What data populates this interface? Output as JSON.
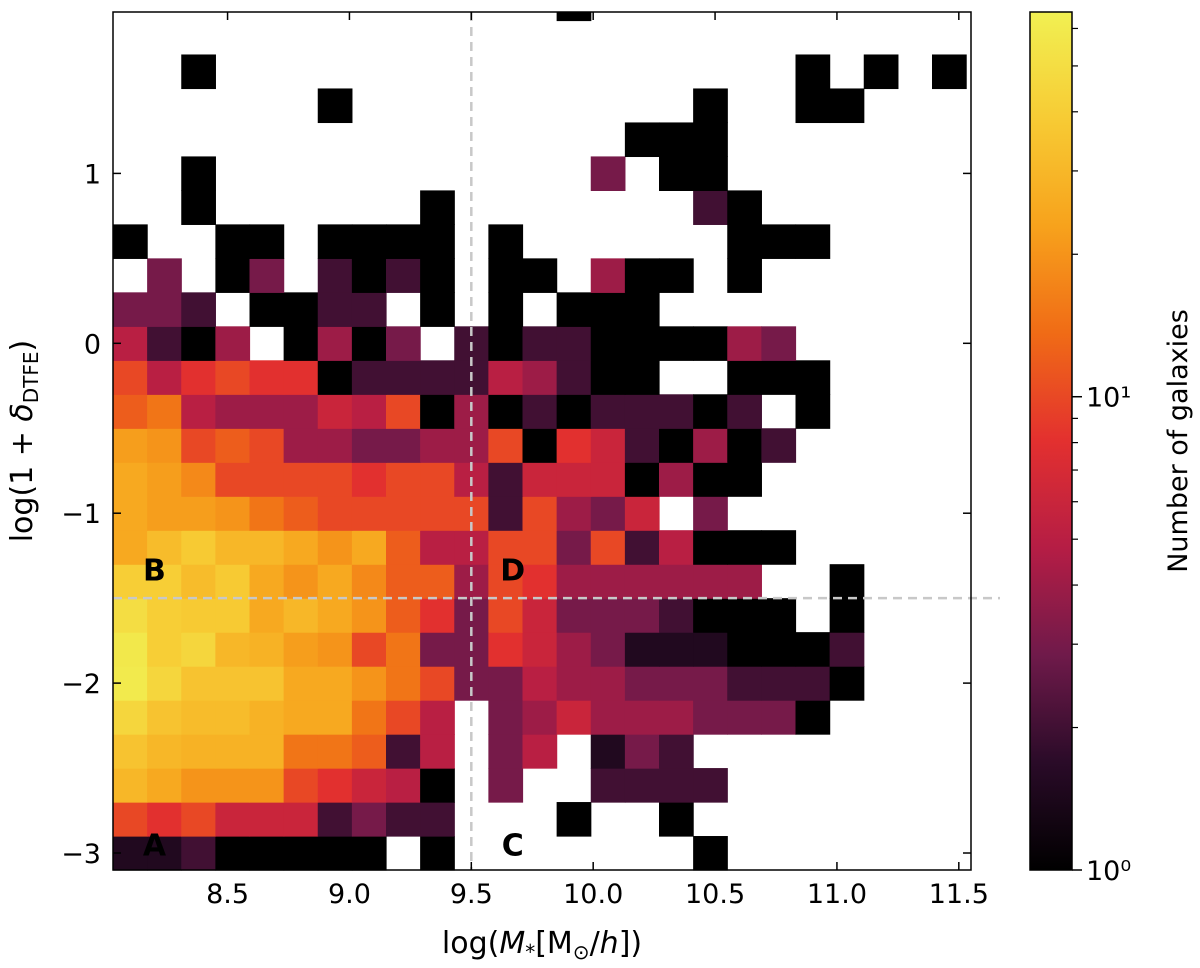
{
  "chart_data": {
    "type": "heatmap",
    "title": "",
    "xlabel": "log(M_*[M_⊙/h])",
    "ylabel": "log(1 + δ_DTFE)",
    "xlim": [
      8.03,
      11.55
    ],
    "ylim": [
      -3.1,
      1.95
    ],
    "xticks": [
      {
        "value": 8.5,
        "label": "8.5"
      },
      {
        "value": 9.0,
        "label": "9.0"
      },
      {
        "value": 9.5,
        "label": "9.5"
      },
      {
        "value": 10.0,
        "label": "10.0"
      },
      {
        "value": 10.5,
        "label": "10.5"
      },
      {
        "value": 11.0,
        "label": "11.0"
      },
      {
        "value": 11.5,
        "label": "11.5"
      }
    ],
    "yticks": [
      {
        "value": 1,
        "label": "1"
      },
      {
        "value": 0,
        "label": "0"
      },
      {
        "value": -1,
        "label": "−1"
      },
      {
        "value": -2,
        "label": "−2"
      },
      {
        "value": -3,
        "label": "−3"
      }
    ],
    "bin": {
      "x0": 8.03,
      "dx": 0.14,
      "y0": -3.1,
      "dy": 0.2
    },
    "cells": [
      [
        0,
        0,
        1.5
      ],
      [
        1,
        0,
        1.5
      ],
      [
        2,
        0,
        2
      ],
      [
        3,
        0,
        1
      ],
      [
        4,
        0,
        1
      ],
      [
        5,
        0,
        1
      ],
      [
        6,
        0,
        1
      ],
      [
        7,
        0,
        1
      ],
      [
        9,
        0,
        1
      ],
      [
        17,
        0,
        1
      ],
      [
        0,
        1,
        10
      ],
      [
        1,
        1,
        8
      ],
      [
        2,
        1,
        10
      ],
      [
        3,
        1,
        6
      ],
      [
        4,
        1,
        6
      ],
      [
        5,
        1,
        6
      ],
      [
        6,
        1,
        2
      ],
      [
        7,
        1,
        3
      ],
      [
        8,
        1,
        2
      ],
      [
        9,
        1,
        2
      ],
      [
        13,
        1,
        1
      ],
      [
        16,
        1,
        1
      ],
      [
        0,
        2,
        30
      ],
      [
        1,
        2,
        25
      ],
      [
        2,
        2,
        20
      ],
      [
        3,
        2,
        20
      ],
      [
        4,
        2,
        20
      ],
      [
        5,
        2,
        10
      ],
      [
        6,
        2,
        8
      ],
      [
        7,
        2,
        6
      ],
      [
        8,
        2,
        5
      ],
      [
        9,
        2,
        1
      ],
      [
        11,
        2,
        3
      ],
      [
        14,
        2,
        2
      ],
      [
        15,
        2,
        2
      ],
      [
        16,
        2,
        2
      ],
      [
        17,
        2,
        2
      ],
      [
        0,
        3,
        35
      ],
      [
        1,
        3,
        30
      ],
      [
        2,
        3,
        28
      ],
      [
        3,
        3,
        28
      ],
      [
        4,
        3,
        28
      ],
      [
        5,
        3,
        15
      ],
      [
        6,
        3,
        15
      ],
      [
        7,
        3,
        12
      ],
      [
        8,
        3,
        2
      ],
      [
        9,
        3,
        5
      ],
      [
        11,
        3,
        3
      ],
      [
        12,
        3,
        5
      ],
      [
        14,
        3,
        1.5
      ],
      [
        15,
        3,
        3
      ],
      [
        16,
        3,
        2
      ],
      [
        0,
        4,
        45
      ],
      [
        1,
        4,
        35
      ],
      [
        2,
        4,
        32
      ],
      [
        3,
        4,
        32
      ],
      [
        4,
        4,
        28
      ],
      [
        5,
        4,
        25
      ],
      [
        6,
        4,
        25
      ],
      [
        7,
        4,
        15
      ],
      [
        8,
        4,
        10
      ],
      [
        9,
        4,
        5
      ],
      [
        11,
        4,
        3
      ],
      [
        12,
        4,
        4
      ],
      [
        13,
        4,
        6
      ],
      [
        14,
        4,
        4
      ],
      [
        15,
        4,
        4
      ],
      [
        16,
        4,
        4
      ],
      [
        17,
        4,
        3
      ],
      [
        18,
        4,
        3
      ],
      [
        19,
        4,
        3
      ],
      [
        20,
        4,
        1
      ],
      [
        0,
        5,
        60
      ],
      [
        1,
        5,
        45
      ],
      [
        2,
        5,
        35
      ],
      [
        3,
        5,
        35
      ],
      [
        4,
        5,
        35
      ],
      [
        5,
        5,
        25
      ],
      [
        6,
        5,
        25
      ],
      [
        7,
        5,
        20
      ],
      [
        8,
        5,
        15
      ],
      [
        9,
        5,
        10
      ],
      [
        10,
        5,
        3
      ],
      [
        11,
        5,
        3
      ],
      [
        12,
        5,
        5
      ],
      [
        13,
        5,
        4
      ],
      [
        14,
        5,
        4
      ],
      [
        15,
        5,
        3
      ],
      [
        16,
        5,
        3
      ],
      [
        17,
        5,
        3
      ],
      [
        18,
        5,
        2
      ],
      [
        19,
        5,
        2
      ],
      [
        20,
        5,
        2
      ],
      [
        21,
        5,
        1
      ],
      [
        0,
        6,
        58
      ],
      [
        1,
        6,
        40
      ],
      [
        2,
        6,
        45
      ],
      [
        3,
        6,
        30
      ],
      [
        4,
        6,
        28
      ],
      [
        5,
        6,
        22
      ],
      [
        6,
        6,
        20
      ],
      [
        7,
        6,
        10
      ],
      [
        8,
        6,
        15
      ],
      [
        9,
        6,
        3
      ],
      [
        10,
        6,
        3
      ],
      [
        11,
        6,
        8
      ],
      [
        12,
        6,
        6
      ],
      [
        13,
        6,
        4
      ],
      [
        14,
        6,
        3
      ],
      [
        15,
        6,
        1.5
      ],
      [
        16,
        6,
        1.5
      ],
      [
        17,
        6,
        1.5
      ],
      [
        18,
        6,
        1
      ],
      [
        19,
        6,
        1
      ],
      [
        20,
        6,
        1
      ],
      [
        21,
        6,
        2
      ],
      [
        0,
        7,
        50
      ],
      [
        1,
        7,
        40
      ],
      [
        2,
        7,
        38
      ],
      [
        3,
        7,
        38
      ],
      [
        4,
        7,
        25
      ],
      [
        5,
        7,
        30
      ],
      [
        6,
        7,
        25
      ],
      [
        7,
        7,
        20
      ],
      [
        8,
        7,
        12
      ],
      [
        9,
        7,
        8
      ],
      [
        10,
        7,
        3
      ],
      [
        11,
        7,
        10
      ],
      [
        12,
        7,
        6
      ],
      [
        13,
        7,
        3
      ],
      [
        14,
        7,
        3
      ],
      [
        15,
        7,
        3
      ],
      [
        16,
        7,
        2
      ],
      [
        17,
        7,
        1
      ],
      [
        18,
        7,
        1
      ],
      [
        19,
        7,
        1
      ],
      [
        21,
        7,
        1
      ],
      [
        0,
        8,
        40
      ],
      [
        1,
        8,
        40
      ],
      [
        2,
        8,
        32
      ],
      [
        3,
        8,
        38
      ],
      [
        4,
        8,
        25
      ],
      [
        5,
        8,
        20
      ],
      [
        6,
        8,
        25
      ],
      [
        7,
        8,
        18
      ],
      [
        8,
        8,
        12
      ],
      [
        9,
        8,
        12
      ],
      [
        10,
        8,
        4
      ],
      [
        11,
        8,
        10
      ],
      [
        12,
        8,
        8
      ],
      [
        13,
        8,
        4
      ],
      [
        14,
        8,
        4
      ],
      [
        15,
        8,
        4
      ],
      [
        16,
        8,
        4
      ],
      [
        17,
        8,
        4
      ],
      [
        18,
        8,
        4
      ],
      [
        21,
        8,
        1
      ],
      [
        0,
        9,
        25
      ],
      [
        1,
        9,
        32
      ],
      [
        2,
        9,
        38
      ],
      [
        3,
        9,
        30
      ],
      [
        4,
        9,
        30
      ],
      [
        5,
        9,
        25
      ],
      [
        6,
        9,
        20
      ],
      [
        7,
        9,
        25
      ],
      [
        8,
        9,
        12
      ],
      [
        9,
        9,
        5
      ],
      [
        10,
        9,
        5
      ],
      [
        11,
        9,
        10
      ],
      [
        12,
        9,
        10
      ],
      [
        13,
        9,
        3
      ],
      [
        14,
        9,
        10
      ],
      [
        15,
        9,
        2
      ],
      [
        16,
        9,
        5
      ],
      [
        17,
        9,
        1
      ],
      [
        18,
        9,
        1
      ],
      [
        19,
        9,
        1
      ],
      [
        0,
        10,
        25
      ],
      [
        1,
        10,
        22
      ],
      [
        2,
        10,
        22
      ],
      [
        3,
        10,
        20
      ],
      [
        4,
        10,
        15
      ],
      [
        5,
        10,
        12
      ],
      [
        6,
        10,
        10
      ],
      [
        7,
        10,
        10
      ],
      [
        8,
        10,
        10
      ],
      [
        9,
        10,
        10
      ],
      [
        10,
        10,
        10
      ],
      [
        11,
        10,
        2
      ],
      [
        12,
        10,
        10
      ],
      [
        13,
        10,
        4
      ],
      [
        14,
        10,
        3
      ],
      [
        15,
        10,
        6
      ],
      [
        17,
        10,
        3
      ],
      [
        0,
        11,
        25
      ],
      [
        1,
        11,
        22
      ],
      [
        2,
        11,
        18
      ],
      [
        3,
        11,
        10
      ],
      [
        4,
        11,
        10
      ],
      [
        5,
        11,
        10
      ],
      [
        6,
        11,
        10
      ],
      [
        7,
        11,
        8
      ],
      [
        8,
        11,
        10
      ],
      [
        9,
        11,
        10
      ],
      [
        10,
        11,
        5
      ],
      [
        11,
        11,
        2
      ],
      [
        12,
        11,
        6
      ],
      [
        13,
        11,
        6
      ],
      [
        14,
        11,
        6
      ],
      [
        15,
        11,
        1
      ],
      [
        16,
        11,
        4
      ],
      [
        17,
        11,
        1
      ],
      [
        18,
        11,
        1
      ],
      [
        0,
        12,
        22
      ],
      [
        1,
        12,
        20
      ],
      [
        2,
        12,
        10
      ],
      [
        3,
        12,
        12
      ],
      [
        4,
        12,
        10
      ],
      [
        5,
        12,
        4
      ],
      [
        6,
        12,
        4
      ],
      [
        7,
        12,
        3
      ],
      [
        8,
        12,
        3
      ],
      [
        9,
        12,
        4
      ],
      [
        10,
        12,
        4
      ],
      [
        11,
        12,
        10
      ],
      [
        12,
        12,
        1
      ],
      [
        13,
        12,
        8
      ],
      [
        14,
        12,
        6
      ],
      [
        15,
        12,
        2
      ],
      [
        16,
        12,
        1
      ],
      [
        17,
        12,
        4
      ],
      [
        18,
        12,
        1
      ],
      [
        19,
        12,
        2
      ],
      [
        0,
        13,
        12
      ],
      [
        1,
        13,
        15
      ],
      [
        2,
        13,
        5
      ],
      [
        3,
        13,
        4
      ],
      [
        4,
        13,
        4
      ],
      [
        5,
        13,
        4
      ],
      [
        6,
        13,
        6
      ],
      [
        7,
        13,
        5
      ],
      [
        8,
        13,
        10
      ],
      [
        9,
        13,
        1
      ],
      [
        10,
        13,
        4
      ],
      [
        11,
        13,
        1
      ],
      [
        12,
        13,
        2
      ],
      [
        13,
        13,
        1
      ],
      [
        14,
        13,
        2
      ],
      [
        15,
        13,
        2
      ],
      [
        16,
        13,
        2
      ],
      [
        17,
        13,
        1
      ],
      [
        18,
        13,
        2
      ],
      [
        20,
        13,
        1
      ],
      [
        0,
        14,
        10
      ],
      [
        1,
        14,
        5
      ],
      [
        2,
        14,
        8
      ],
      [
        3,
        14,
        10
      ],
      [
        4,
        14,
        8
      ],
      [
        5,
        14,
        8
      ],
      [
        6,
        14,
        1
      ],
      [
        7,
        14,
        2
      ],
      [
        8,
        14,
        2
      ],
      [
        9,
        14,
        2
      ],
      [
        10,
        14,
        2
      ],
      [
        11,
        14,
        5
      ],
      [
        12,
        14,
        4
      ],
      [
        13,
        14,
        2
      ],
      [
        14,
        14,
        1
      ],
      [
        15,
        14,
        1
      ],
      [
        18,
        14,
        1
      ],
      [
        19,
        14,
        1
      ],
      [
        20,
        14,
        1
      ],
      [
        0,
        15,
        5
      ],
      [
        1,
        15,
        2
      ],
      [
        2,
        15,
        1
      ],
      [
        3,
        15,
        4
      ],
      [
        5,
        15,
        1
      ],
      [
        6,
        15,
        4
      ],
      [
        7,
        15,
        1
      ],
      [
        8,
        15,
        3
      ],
      [
        10,
        15,
        2
      ],
      [
        11,
        15,
        1
      ],
      [
        12,
        15,
        2
      ],
      [
        13,
        15,
        2
      ],
      [
        14,
        15,
        1
      ],
      [
        15,
        15,
        1
      ],
      [
        16,
        15,
        1
      ],
      [
        17,
        15,
        1
      ],
      [
        18,
        15,
        4
      ],
      [
        19,
        15,
        3
      ],
      [
        0,
        16,
        3
      ],
      [
        1,
        16,
        3
      ],
      [
        2,
        16,
        2
      ],
      [
        4,
        16,
        1
      ],
      [
        5,
        16,
        1
      ],
      [
        6,
        16,
        2
      ],
      [
        7,
        16,
        2
      ],
      [
        9,
        16,
        1
      ],
      [
        11,
        16,
        1
      ],
      [
        13,
        16,
        1
      ],
      [
        14,
        16,
        1
      ],
      [
        15,
        16,
        1
      ],
      [
        1,
        17,
        3
      ],
      [
        3,
        17,
        1
      ],
      [
        4,
        17,
        3
      ],
      [
        6,
        17,
        2
      ],
      [
        7,
        17,
        1
      ],
      [
        8,
        17,
        2
      ],
      [
        9,
        17,
        1
      ],
      [
        11,
        17,
        1
      ],
      [
        12,
        17,
        1
      ],
      [
        14,
        17,
        4
      ],
      [
        15,
        17,
        1
      ],
      [
        16,
        17,
        1
      ],
      [
        18,
        17,
        1
      ],
      [
        0,
        18,
        1
      ],
      [
        3,
        18,
        1
      ],
      [
        4,
        18,
        1
      ],
      [
        6,
        18,
        1
      ],
      [
        7,
        18,
        1
      ],
      [
        8,
        18,
        1
      ],
      [
        9,
        18,
        1
      ],
      [
        11,
        18,
        1
      ],
      [
        18,
        18,
        1
      ],
      [
        19,
        18,
        1
      ],
      [
        20,
        18,
        1
      ],
      [
        2,
        19,
        1
      ],
      [
        9,
        19,
        1
      ],
      [
        17,
        19,
        2
      ],
      [
        18,
        19,
        1
      ],
      [
        2,
        20,
        1
      ],
      [
        14,
        20,
        3
      ],
      [
        16,
        20,
        1
      ],
      [
        17,
        20,
        1
      ],
      [
        15,
        21,
        1
      ],
      [
        16,
        21,
        1
      ],
      [
        17,
        21,
        1
      ],
      [
        6,
        22,
        1
      ],
      [
        17,
        22,
        1
      ],
      [
        20,
        22,
        1
      ],
      [
        21,
        22,
        1
      ],
      [
        2,
        23,
        1
      ],
      [
        20,
        23,
        1
      ],
      [
        22,
        23,
        1
      ],
      [
        24,
        23,
        1
      ],
      [
        13,
        25,
        1
      ]
    ],
    "reference_lines": {
      "vertical_x": 9.5,
      "horizontal_y": -1.5
    },
    "regions": [
      {
        "label": "A",
        "x": 8.2,
        "y": -2.95
      },
      {
        "label": "B",
        "x": 8.2,
        "y": -1.33
      },
      {
        "label": "C",
        "x": 9.67,
        "y": -2.95
      },
      {
        "label": "D",
        "x": 9.67,
        "y": -1.33
      }
    ],
    "colorbar": {
      "label": "Number of galaxies",
      "scale": "log",
      "vmin": 1,
      "vmax": 65,
      "ticks": [
        {
          "value": 1,
          "label": "10⁰"
        },
        {
          "value": 10,
          "label": "10¹"
        }
      ],
      "colormap": "inferno",
      "stops": [
        "#000000",
        "#2a0b28",
        "#6f1a4a",
        "#b51d45",
        "#e3302f",
        "#f06b16",
        "#f7a21c",
        "#f7cb34",
        "#f1f052"
      ]
    }
  }
}
